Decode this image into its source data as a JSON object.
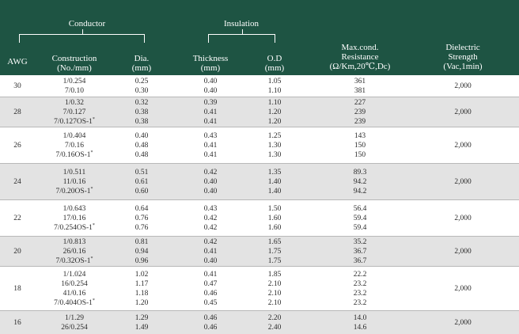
{
  "header": {
    "conductor": "Conductor",
    "insulation": "Insulation",
    "awg": "AWG",
    "construction": [
      "Construction",
      "(No./mm)"
    ],
    "dia": [
      "Dia.",
      "(mm)"
    ],
    "thickness": [
      "Thickness",
      "(mm)"
    ],
    "od": [
      "O.D",
      "(mm)"
    ],
    "resistance": [
      "Max.cond.",
      "Resistance",
      "(Ω/Km,20℃,Dc)"
    ],
    "dielectric": [
      "Dielectric",
      "Strength",
      "(Vac,1min)"
    ]
  },
  "colors": {
    "header_bg": "#1e5443",
    "shaded_row": "#e3e3e3"
  },
  "rows": [
    {
      "awg": "30",
      "construction": [
        "1/0.254",
        "7/0.10"
      ],
      "dia": [
        "0.25",
        "0.30"
      ],
      "thickness": [
        "0.40",
        "0.40"
      ],
      "od": [
        "1.05",
        "1.10"
      ],
      "resistance": [
        "361",
        "381"
      ],
      "dielectric": "2,000"
    },
    {
      "awg": "28",
      "construction": [
        "1/0.32",
        "7/0.127",
        "7/0.127OS-1*"
      ],
      "dia": [
        "0.32",
        "0.38",
        "0.38"
      ],
      "thickness": [
        "0.39",
        "0.41",
        "0.41"
      ],
      "od": [
        "1.10",
        "1.20",
        "1.20"
      ],
      "resistance": [
        "227",
        "239",
        "239"
      ],
      "dielectric": "2,000"
    },
    {
      "awg": "26",
      "construction": [
        "1/0.404",
        "7/0.16",
        "7/0.16OS-1*"
      ],
      "dia": [
        "0.40",
        "0.48",
        "0.48"
      ],
      "thickness": [
        "0.43",
        "0.41",
        "0.41"
      ],
      "od": [
        "1.25",
        "1.30",
        "1.30"
      ],
      "resistance": [
        "143",
        "150",
        "150"
      ],
      "dielectric": "2,000"
    },
    {
      "awg": "24",
      "construction": [
        "1/0.511",
        "11/0.16",
        "7/0.20OS-1*"
      ],
      "dia": [
        "0.51",
        "0.61",
        "0.60"
      ],
      "thickness": [
        "0.42",
        "0.40",
        "0.40"
      ],
      "od": [
        "1.35",
        "1.40",
        "1.40"
      ],
      "resistance": [
        "89.3",
        "94.2",
        "94.2"
      ],
      "dielectric": "2,000"
    },
    {
      "awg": "22",
      "construction": [
        "1/0.643",
        "17/0.16",
        "7/0.254OS-1*"
      ],
      "dia": [
        "0.64",
        "0.76",
        "0.76"
      ],
      "thickness": [
        "0.43",
        "0.42",
        "0.42"
      ],
      "od": [
        "1.50",
        "1.60",
        "1.60"
      ],
      "resistance": [
        "56.4",
        "59.4",
        "59.4"
      ],
      "dielectric": "2,000"
    },
    {
      "awg": "20",
      "construction": [
        "1/0.813",
        "26/0.16",
        "7/0.32OS-1*"
      ],
      "dia": [
        "0.81",
        "0.94",
        "0.96"
      ],
      "thickness": [
        "0.42",
        "0.41",
        "0.40"
      ],
      "od": [
        "1.65",
        "1.75",
        "1.75"
      ],
      "resistance": [
        "35.2",
        "36.7",
        "36.7"
      ],
      "dielectric": "2,000"
    },
    {
      "awg": "18",
      "construction": [
        "1/1.024",
        "16/0.254",
        "41/0.16",
        "7/0.404OS-1*"
      ],
      "dia": [
        "1.02",
        "1.17",
        "1.18",
        "1.20"
      ],
      "thickness": [
        "0.41",
        "0.47",
        "0.46",
        "0.45"
      ],
      "od": [
        "1.85",
        "2.10",
        "2.10",
        "2.10"
      ],
      "resistance": [
        "22.2",
        "23.2",
        "23.2",
        "23.2"
      ],
      "dielectric": "2,000"
    },
    {
      "awg": "16",
      "construction": [
        "1/1.29",
        "26/0.254"
      ],
      "dia": [
        "1.29",
        "1.49"
      ],
      "thickness": [
        "0.46",
        "0.46"
      ],
      "od": [
        "2.20",
        "2.40"
      ],
      "resistance": [
        "14.0",
        "14.6"
      ],
      "dielectric": "2,000"
    }
  ]
}
